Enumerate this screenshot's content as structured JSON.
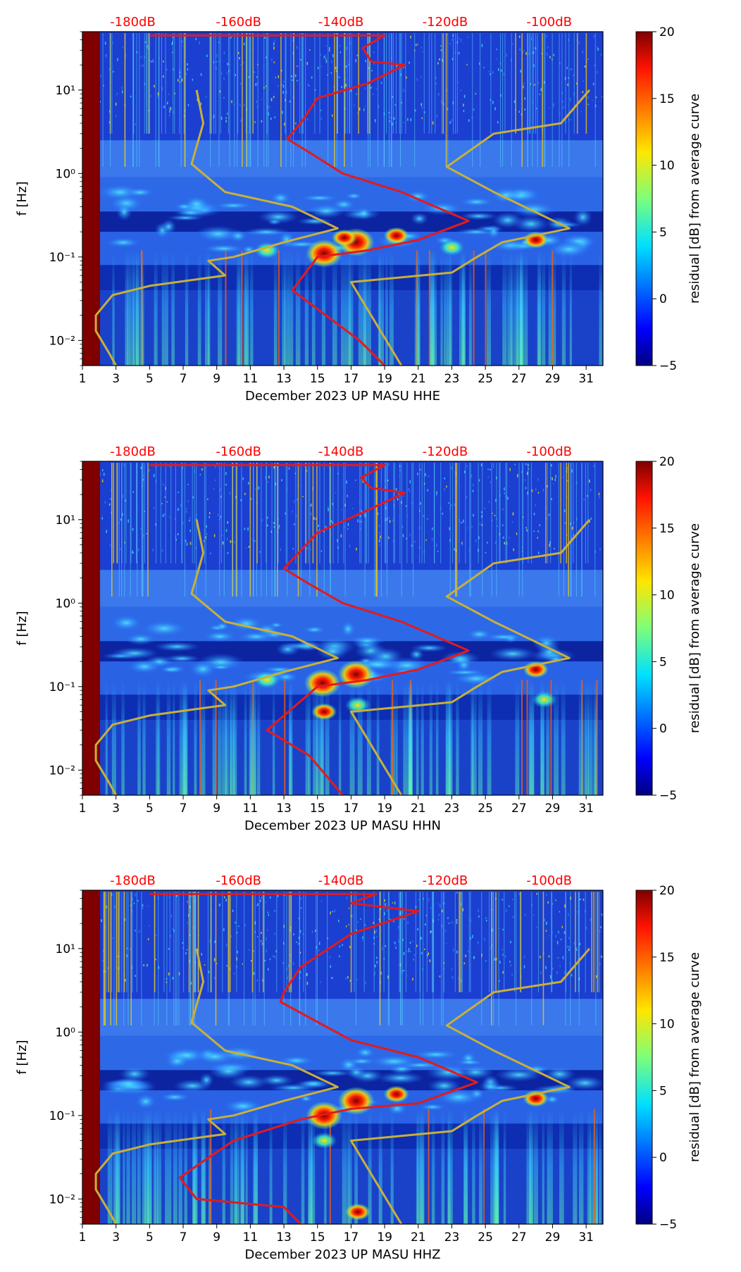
{
  "figure": {
    "colorbar": {
      "label": "residual [dB] from average curve",
      "ticks": [
        "20",
        "15",
        "10",
        "5",
        "0",
        "−5"
      ],
      "tick_values": [
        20,
        15,
        10,
        5,
        0,
        -5
      ],
      "range": [
        -5,
        20
      ]
    },
    "colors": {
      "red_curve": "#e31a1c",
      "olive_curve": "#c8b03a",
      "top_label": "#ff0000",
      "background_band": "#1f4fd8",
      "deep_blue": "#0a1f9a",
      "left_band": "#7f0000"
    }
  },
  "chart_data": [
    {
      "type": "heatmap",
      "title": "",
      "xlabel": "December 2023 UP MASU  HHE",
      "ylabel": "f [Hz]",
      "x_ticks": [
        "1",
        "3",
        "5",
        "7",
        "9",
        "11",
        "13",
        "15",
        "17",
        "19",
        "21",
        "23",
        "25",
        "27",
        "29",
        "31"
      ],
      "x_tick_values": [
        1,
        3,
        5,
        7,
        9,
        11,
        13,
        15,
        17,
        19,
        21,
        23,
        25,
        27,
        29,
        31
      ],
      "xlim": [
        1,
        32
      ],
      "y_scale": "log",
      "ylim": [
        0.005,
        50
      ],
      "y_ticks": [
        "10¹",
        "10⁰",
        "10⁻¹",
        "10⁻²"
      ],
      "y_tick_values": [
        10,
        1,
        0.1,
        0.01
      ],
      "top_axis_labels": [
        "-180dB",
        "-160dB",
        "-140dB",
        "-120dB",
        "-100dB"
      ],
      "top_axis_day_positions": [
        4,
        10.3,
        16.4,
        22.6,
        28.8
      ],
      "red_curve": [
        [
          5,
          45
        ],
        [
          19,
          45
        ],
        [
          17.7,
          32
        ],
        [
          18.2,
          22
        ],
        [
          20.2,
          20
        ],
        [
          18,
          12
        ],
        [
          15,
          8
        ],
        [
          14,
          4
        ],
        [
          13.2,
          2.6
        ],
        [
          14.5,
          1.8
        ],
        [
          16.5,
          1
        ],
        [
          20,
          0.6
        ],
        [
          24,
          0.27
        ],
        [
          21,
          0.16
        ],
        [
          18,
          0.12
        ],
        [
          15,
          0.1
        ],
        [
          13.5,
          0.04
        ],
        [
          15.5,
          0.02
        ],
        [
          17.5,
          0.01
        ],
        [
          19,
          0.005
        ]
      ],
      "olive_curve": [
        [
          7.8,
          10
        ],
        [
          8.2,
          4
        ],
        [
          7.5,
          1.3
        ],
        [
          9.5,
          0.6
        ],
        [
          13.5,
          0.4
        ],
        [
          16.2,
          0.22
        ],
        [
          13,
          0.15
        ],
        [
          10,
          0.1
        ],
        [
          8.5,
          0.09
        ],
        [
          9.5,
          0.06
        ],
        [
          5,
          0.045
        ],
        [
          2.8,
          0.035
        ],
        [
          1.8,
          0.02
        ],
        [
          1.8,
          0.013
        ],
        [
          2.6,
          0.007
        ],
        [
          3,
          0.005
        ]
      ],
      "olive_curve_right": [
        [
          31.2,
          10
        ],
        [
          29.5,
          4
        ],
        [
          25.5,
          3
        ],
        [
          22.7,
          1.2
        ],
        [
          25.5,
          0.6
        ],
        [
          30,
          0.22
        ],
        [
          26,
          0.15
        ],
        [
          24.5,
          0.1
        ],
        [
          23,
          0.065
        ],
        [
          17,
          0.05
        ],
        [
          20,
          0.005
        ]
      ],
      "hotspots": [
        {
          "x": 15.4,
          "f": 0.11,
          "level": 18
        },
        {
          "x": 17.3,
          "f": 0.15,
          "level": 19
        },
        {
          "x": 19.7,
          "f": 0.18,
          "level": 15
        },
        {
          "x": 16.6,
          "f": 0.17,
          "level": 14
        },
        {
          "x": 28,
          "f": 0.16,
          "level": 15
        },
        {
          "x": 12,
          "f": 0.12,
          "level": 10
        },
        {
          "x": 23,
          "f": 0.13,
          "level": 10
        }
      ]
    },
    {
      "type": "heatmap",
      "title": "",
      "xlabel": "December 2023 UP MASU  HHN",
      "ylabel": "f [Hz]",
      "x_ticks": [
        "1",
        "3",
        "5",
        "7",
        "9",
        "11",
        "13",
        "15",
        "17",
        "19",
        "21",
        "23",
        "25",
        "27",
        "29",
        "31"
      ],
      "x_tick_values": [
        1,
        3,
        5,
        7,
        9,
        11,
        13,
        15,
        17,
        19,
        21,
        23,
        25,
        27,
        29,
        31
      ],
      "xlim": [
        1,
        32
      ],
      "y_scale": "log",
      "ylim": [
        0.005,
        50
      ],
      "y_ticks": [
        "10¹",
        "10⁰",
        "10⁻¹",
        "10⁻²"
      ],
      "y_tick_values": [
        10,
        1,
        0.1,
        0.01
      ],
      "top_axis_labels": [
        "-180dB",
        "-160dB",
        "-140dB",
        "-120dB",
        "-100dB"
      ],
      "top_axis_day_positions": [
        4,
        10.3,
        16.4,
        22.6,
        28.8
      ],
      "red_curve": [
        [
          5,
          45
        ],
        [
          19,
          45
        ],
        [
          17.6,
          32
        ],
        [
          18.2,
          24
        ],
        [
          20.2,
          21
        ],
        [
          18,
          13
        ],
        [
          15,
          7
        ],
        [
          13.6,
          3.5
        ],
        [
          13,
          2.6
        ],
        [
          14.5,
          1.7
        ],
        [
          16.5,
          1
        ],
        [
          20,
          0.6
        ],
        [
          24,
          0.27
        ],
        [
          21,
          0.16
        ],
        [
          18,
          0.12
        ],
        [
          15,
          0.1
        ],
        [
          12,
          0.03
        ],
        [
          14.5,
          0.015
        ],
        [
          16.5,
          0.005
        ]
      ],
      "olive_curve": [
        [
          7.8,
          10
        ],
        [
          8.2,
          4
        ],
        [
          7.5,
          1.3
        ],
        [
          9.5,
          0.6
        ],
        [
          13.5,
          0.4
        ],
        [
          16.2,
          0.22
        ],
        [
          13,
          0.15
        ],
        [
          10,
          0.1
        ],
        [
          8.5,
          0.09
        ],
        [
          9.5,
          0.06
        ],
        [
          5,
          0.045
        ],
        [
          2.8,
          0.035
        ],
        [
          1.8,
          0.02
        ],
        [
          1.8,
          0.013
        ],
        [
          2.6,
          0.007
        ],
        [
          3,
          0.005
        ]
      ],
      "olive_curve_right": [
        [
          31.2,
          10
        ],
        [
          29.5,
          4
        ],
        [
          25.5,
          3
        ],
        [
          22.7,
          1.2
        ],
        [
          25.5,
          0.6
        ],
        [
          30,
          0.22
        ],
        [
          26,
          0.15
        ],
        [
          24.5,
          0.1
        ],
        [
          23,
          0.065
        ],
        [
          17,
          0.05
        ],
        [
          20,
          0.005
        ]
      ],
      "hotspots": [
        {
          "x": 15.3,
          "f": 0.11,
          "level": 17
        },
        {
          "x": 17.3,
          "f": 0.14,
          "level": 19
        },
        {
          "x": 15.4,
          "f": 0.05,
          "level": 14
        },
        {
          "x": 17.4,
          "f": 0.06,
          "level": 12
        },
        {
          "x": 28,
          "f": 0.16,
          "level": 16
        },
        {
          "x": 12,
          "f": 0.12,
          "level": 10
        },
        {
          "x": 28.5,
          "f": 0.07,
          "level": 11
        }
      ]
    },
    {
      "type": "heatmap",
      "title": "",
      "xlabel": "December 2023 UP MASU  HHZ",
      "ylabel": "f [Hz]",
      "x_ticks": [
        "1",
        "3",
        "5",
        "7",
        "9",
        "11",
        "13",
        "15",
        "17",
        "19",
        "21",
        "23",
        "25",
        "27",
        "29",
        "31"
      ],
      "x_tick_values": [
        1,
        3,
        5,
        7,
        9,
        11,
        13,
        15,
        17,
        19,
        21,
        23,
        25,
        27,
        29,
        31
      ],
      "xlim": [
        1,
        32
      ],
      "y_scale": "log",
      "ylim": [
        0.005,
        50
      ],
      "y_ticks": [
        "10¹",
        "10⁰",
        "10⁻¹",
        "10⁻²"
      ],
      "y_tick_values": [
        10,
        1,
        0.1,
        0.01
      ],
      "top_axis_labels": [
        "-180dB",
        "-160dB",
        "-140dB",
        "-120dB",
        "-100dB"
      ],
      "top_axis_day_positions": [
        4,
        10.3,
        16.4,
        22.6,
        28.8
      ],
      "red_curve": [
        [
          5,
          45
        ],
        [
          18.5,
          45
        ],
        [
          17,
          35
        ],
        [
          21,
          28
        ],
        [
          17,
          15
        ],
        [
          14,
          6
        ],
        [
          13,
          3
        ],
        [
          12.8,
          2.3
        ],
        [
          14.5,
          1.5
        ],
        [
          17,
          0.8
        ],
        [
          21,
          0.5
        ],
        [
          24.5,
          0.25
        ],
        [
          21,
          0.14
        ],
        [
          17,
          0.12
        ],
        [
          14,
          0.09
        ],
        [
          10,
          0.05
        ],
        [
          7.8,
          0.025
        ],
        [
          6.8,
          0.018
        ],
        [
          7.8,
          0.01
        ],
        [
          13,
          0.008
        ],
        [
          14,
          0.005
        ]
      ],
      "olive_curve": [
        [
          7.8,
          10
        ],
        [
          8.2,
          4
        ],
        [
          7.5,
          1.3
        ],
        [
          9.5,
          0.6
        ],
        [
          13.5,
          0.4
        ],
        [
          16.2,
          0.22
        ],
        [
          13,
          0.15
        ],
        [
          10,
          0.1
        ],
        [
          8.5,
          0.09
        ],
        [
          9.5,
          0.06
        ],
        [
          5,
          0.045
        ],
        [
          2.8,
          0.035
        ],
        [
          1.8,
          0.02
        ],
        [
          1.8,
          0.013
        ],
        [
          2.6,
          0.007
        ],
        [
          3,
          0.005
        ]
      ],
      "olive_curve_right": [
        [
          31.2,
          10
        ],
        [
          29.5,
          4
        ],
        [
          25.5,
          3
        ],
        [
          22.7,
          1.2
        ],
        [
          25.5,
          0.6
        ],
        [
          30,
          0.22
        ],
        [
          26,
          0.15
        ],
        [
          24.5,
          0.1
        ],
        [
          23,
          0.065
        ],
        [
          17,
          0.05
        ],
        [
          20,
          0.005
        ]
      ],
      "hotspots": [
        {
          "x": 15.4,
          "f": 0.1,
          "level": 18
        },
        {
          "x": 17.3,
          "f": 0.15,
          "level": 19
        },
        {
          "x": 19.7,
          "f": 0.18,
          "level": 15
        },
        {
          "x": 28,
          "f": 0.16,
          "level": 15
        },
        {
          "x": 15.4,
          "f": 0.05,
          "level": 12
        },
        {
          "x": 17.4,
          "f": 0.007,
          "level": 14
        }
      ]
    }
  ]
}
